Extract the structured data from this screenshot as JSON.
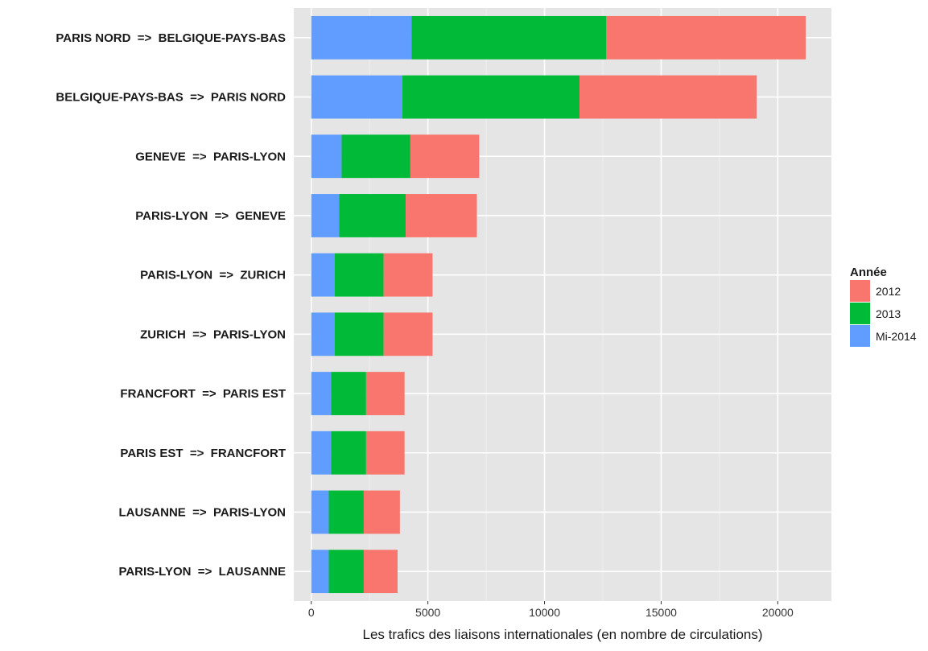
{
  "chart_data": {
    "type": "bar",
    "orientation": "horizontal",
    "stacked": true,
    "categories": [
      "PARIS NORD  =>  BELGIQUE-PAYS-BAS",
      "BELGIQUE-PAYS-BAS  =>  PARIS NORD",
      "GENEVE  =>  PARIS-LYON",
      "PARIS-LYON  =>  GENEVE",
      "PARIS-LYON  =>  ZURICH",
      "ZURICH  =>  PARIS-LYON",
      "FRANCFORT  =>  PARIS EST",
      "PARIS EST  =>  FRANCFORT",
      "LAUSANNE  =>  PARIS-LYON",
      "PARIS-LYON  =>  LAUSANNE"
    ],
    "stack_order": [
      "Mi-2014",
      "2013",
      "2012"
    ],
    "series": [
      {
        "name": "2012",
        "color": "#F8766D",
        "values": [
          8550,
          7600,
          2950,
          3050,
          2100,
          2100,
          1650,
          1650,
          1550,
          1450
        ]
      },
      {
        "name": "2013",
        "color": "#00BA38",
        "values": [
          8350,
          7600,
          2950,
          2850,
          2100,
          2100,
          1500,
          1500,
          1500,
          1500
        ]
      },
      {
        "name": "Mi-2014",
        "color": "#619CFF",
        "values": [
          4300,
          3900,
          1300,
          1200,
          1000,
          1000,
          850,
          850,
          750,
          750
        ]
      }
    ],
    "title": "",
    "xlabel": "Les trafics des liaisons internationales (en nombre de circulations)",
    "ylabel": "",
    "xlim": [
      -750,
      22300
    ],
    "xticks": [
      0,
      5000,
      10000,
      15000,
      20000
    ],
    "grid": true,
    "legend": {
      "title": "Année",
      "position": "right",
      "entries": [
        "2012",
        "2013",
        "Mi-2014"
      ]
    }
  }
}
